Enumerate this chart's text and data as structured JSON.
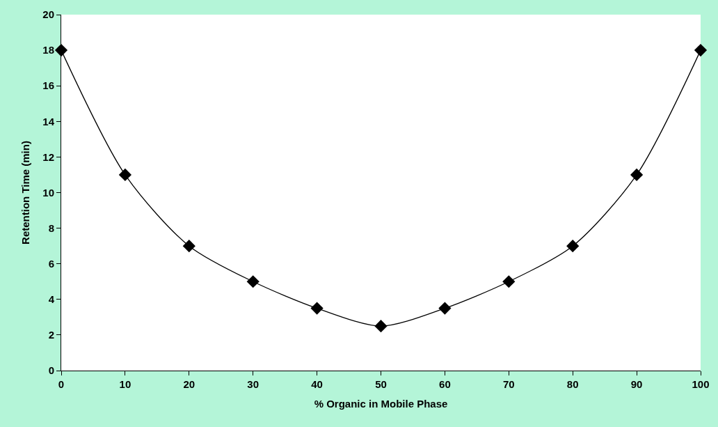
{
  "chart_data": {
    "type": "line",
    "xlabel": "% Organic in Mobile Phase",
    "ylabel": "Retention Time (min)",
    "x": [
      0,
      10,
      20,
      30,
      40,
      50,
      60,
      70,
      80,
      90,
      100
    ],
    "series": [
      {
        "color": "#000000",
        "values": [
          18,
          11,
          7,
          5,
          3.5,
          2.5,
          3.5,
          5,
          7,
          11,
          18
        ]
      }
    ],
    "xlim": [
      0,
      100
    ],
    "xticks": [
      0,
      10,
      20,
      30,
      40,
      50,
      60,
      70,
      80,
      90,
      100
    ],
    "ylim": [
      0,
      20
    ],
    "yticks": [
      0,
      2,
      4,
      6,
      8,
      10,
      12,
      14,
      16,
      18,
      20
    ],
    "marker": "diamond",
    "line_style": "solid"
  }
}
